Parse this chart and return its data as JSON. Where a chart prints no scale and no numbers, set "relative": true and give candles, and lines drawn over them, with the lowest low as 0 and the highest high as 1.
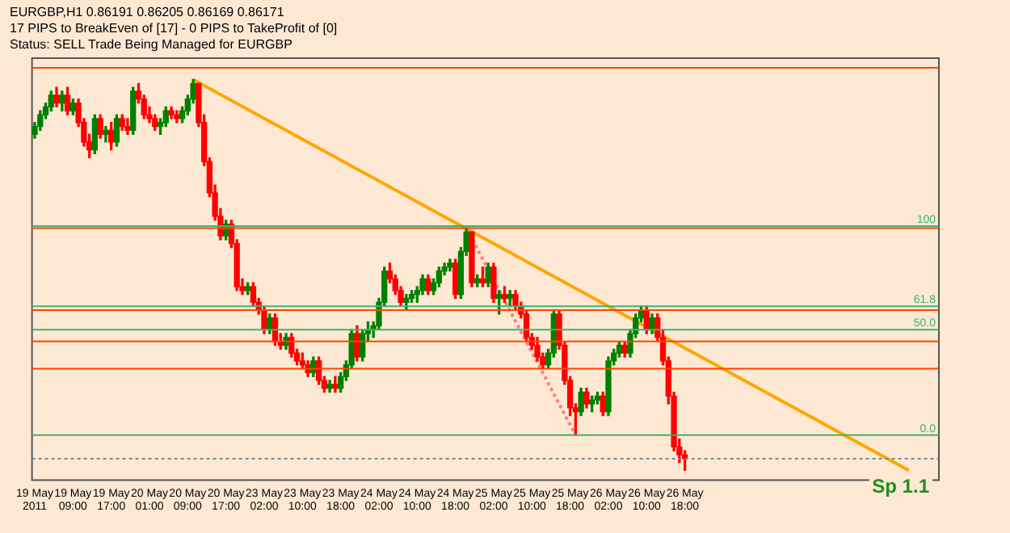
{
  "chart_data": {
    "type": "candlestick",
    "relative": true,
    "title": "EURGBP,H1  0.86191 0.86205 0.86169 0.86171",
    "annotations": [
      "17 PIPS to BreakEven of [17] - 0 PIPS to TakeProfit of [0]",
      "Status: SELL Trade Being Managed for EURGBP",
      {
        "text": "100",
        "y": 0.625
      },
      {
        "text": "61.8",
        "y": 0.42
      },
      {
        "text": "50.0",
        "y": 0.36
      },
      {
        "text": "0.0",
        "y": 0.09
      },
      "Sp 1.1"
    ],
    "categories": [
      "19 May 2011",
      null,
      null,
      null,
      null,
      null,
      null,
      "19 May 09:00",
      null,
      null,
      null,
      null,
      null,
      null,
      "19 May 17:00",
      null,
      null,
      null,
      null,
      null,
      null,
      "20 May 01:00",
      null,
      null,
      null,
      null,
      null,
      null,
      "20 May 09:00",
      null,
      null,
      null,
      null,
      null,
      null,
      "20 May 17:00",
      null,
      null,
      null,
      null,
      null,
      null,
      "23 May 02:00",
      null,
      null,
      null,
      null,
      null,
      null,
      "23 May 10:00",
      null,
      null,
      null,
      null,
      null,
      null,
      "23 May 18:00",
      null,
      null,
      null,
      null,
      null,
      null,
      "24 May 02:00",
      null,
      null,
      null,
      null,
      null,
      null,
      "24 May 10:00",
      null,
      null,
      null,
      null,
      null,
      null,
      "24 May 18:00",
      null,
      null,
      null,
      null,
      null,
      null,
      "25 May 02:00",
      null,
      null,
      null,
      null,
      null,
      null,
      "25 May 10:00",
      null,
      null,
      null,
      null,
      null,
      null,
      "25 May 18:00",
      null,
      null,
      null,
      null,
      null,
      null,
      "26 May 02:00",
      null,
      null,
      null,
      null,
      null,
      null,
      "26 May 10:00",
      null,
      null,
      null,
      null,
      null,
      null,
      "26 May 18:00",
      null,
      null,
      null,
      null,
      null,
      null,
      null,
      null,
      null,
      null,
      null,
      null,
      null,
      null,
      null,
      null,
      null,
      null,
      null,
      null,
      null,
      null,
      null,
      null,
      null,
      null,
      null,
      null,
      null,
      null,
      null,
      null,
      null,
      null,
      null,
      null,
      null,
      null,
      null,
      null,
      null,
      null,
      null,
      null,
      null,
      null
    ],
    "ohlc": [
      [
        0.86,
        0.89,
        0.85,
        0.88
      ],
      [
        0.88,
        0.92,
        0.87,
        0.91
      ],
      [
        0.91,
        0.94,
        0.9,
        0.93
      ],
      [
        0.93,
        0.97,
        0.92,
        0.96
      ],
      [
        0.96,
        0.98,
        0.93,
        0.94
      ],
      [
        0.94,
        0.97,
        0.92,
        0.96
      ],
      [
        0.96,
        0.98,
        0.91,
        0.92
      ],
      [
        0.92,
        0.95,
        0.91,
        0.94
      ],
      [
        0.94,
        0.95,
        0.88,
        0.89
      ],
      [
        0.89,
        0.9,
        0.83,
        0.84
      ],
      [
        0.84,
        0.86,
        0.8,
        0.82
      ],
      [
        0.82,
        0.91,
        0.81,
        0.9
      ],
      [
        0.9,
        0.91,
        0.85,
        0.86
      ],
      [
        0.86,
        0.88,
        0.84,
        0.87
      ],
      [
        0.87,
        0.89,
        0.82,
        0.84
      ],
      [
        0.84,
        0.91,
        0.83,
        0.9
      ],
      [
        0.9,
        0.91,
        0.87,
        0.88
      ],
      [
        0.88,
        0.9,
        0.86,
        0.87
      ],
      [
        0.87,
        0.98,
        0.86,
        0.97
      ],
      [
        0.97,
        0.99,
        0.94,
        0.95
      ],
      [
        0.95,
        0.96,
        0.9,
        0.91
      ],
      [
        0.91,
        0.93,
        0.89,
        0.9
      ],
      [
        0.9,
        0.91,
        0.87,
        0.88
      ],
      [
        0.88,
        0.9,
        0.86,
        0.89
      ],
      [
        0.89,
        0.93,
        0.88,
        0.92
      ],
      [
        0.92,
        0.93,
        0.9,
        0.91
      ],
      [
        0.91,
        0.92,
        0.89,
        0.9
      ],
      [
        0.9,
        0.93,
        0.89,
        0.92
      ],
      [
        0.92,
        0.96,
        0.91,
        0.95
      ],
      [
        0.95,
        1.0,
        0.94,
        0.99
      ],
      [
        0.99,
        0.99,
        0.88,
        0.89
      ],
      [
        0.89,
        0.91,
        0.78,
        0.79
      ],
      [
        0.79,
        0.8,
        0.7,
        0.71
      ],
      [
        0.71,
        0.73,
        0.64,
        0.65
      ],
      [
        0.65,
        0.67,
        0.59,
        0.6
      ],
      [
        0.6,
        0.64,
        0.59,
        0.63
      ],
      [
        0.63,
        0.64,
        0.57,
        0.58
      ],
      [
        0.58,
        0.59,
        0.46,
        0.47
      ],
      [
        0.47,
        0.49,
        0.45,
        0.46
      ],
      [
        0.46,
        0.48,
        0.45,
        0.47
      ],
      [
        0.47,
        0.48,
        0.42,
        0.43
      ],
      [
        0.43,
        0.44,
        0.4,
        0.41
      ],
      [
        0.41,
        0.42,
        0.35,
        0.36
      ],
      [
        0.36,
        0.4,
        0.35,
        0.39
      ],
      [
        0.39,
        0.4,
        0.32,
        0.33
      ],
      [
        0.33,
        0.35,
        0.31,
        0.32
      ],
      [
        0.32,
        0.35,
        0.31,
        0.34
      ],
      [
        0.34,
        0.35,
        0.29,
        0.3
      ],
      [
        0.3,
        0.31,
        0.27,
        0.28
      ],
      [
        0.28,
        0.3,
        0.26,
        0.27
      ],
      [
        0.27,
        0.28,
        0.24,
        0.25
      ],
      [
        0.25,
        0.29,
        0.24,
        0.28
      ],
      [
        0.28,
        0.29,
        0.22,
        0.23
      ],
      [
        0.23,
        0.24,
        0.2,
        0.21
      ],
      [
        0.21,
        0.23,
        0.2,
        0.22
      ],
      [
        0.22,
        0.24,
        0.2,
        0.21
      ],
      [
        0.21,
        0.25,
        0.2,
        0.24
      ],
      [
        0.24,
        0.28,
        0.23,
        0.27
      ],
      [
        0.27,
        0.36,
        0.26,
        0.35
      ],
      [
        0.35,
        0.37,
        0.28,
        0.29
      ],
      [
        0.29,
        0.36,
        0.28,
        0.35
      ],
      [
        0.35,
        0.38,
        0.33,
        0.36
      ],
      [
        0.36,
        0.38,
        0.34,
        0.37
      ],
      [
        0.37,
        0.44,
        0.36,
        0.43
      ],
      [
        0.43,
        0.52,
        0.42,
        0.51
      ],
      [
        0.51,
        0.53,
        0.48,
        0.49
      ],
      [
        0.49,
        0.5,
        0.45,
        0.46
      ],
      [
        0.46,
        0.47,
        0.42,
        0.43
      ],
      [
        0.43,
        0.45,
        0.41,
        0.44
      ],
      [
        0.44,
        0.46,
        0.43,
        0.45
      ],
      [
        0.45,
        0.47,
        0.43,
        0.46
      ],
      [
        0.46,
        0.5,
        0.45,
        0.49
      ],
      [
        0.49,
        0.5,
        0.45,
        0.46
      ],
      [
        0.46,
        0.49,
        0.45,
        0.48
      ],
      [
        0.48,
        0.52,
        0.47,
        0.51
      ],
      [
        0.51,
        0.53,
        0.5,
        0.52
      ],
      [
        0.52,
        0.54,
        0.51,
        0.53
      ],
      [
        0.53,
        0.54,
        0.44,
        0.45
      ],
      [
        0.45,
        0.57,
        0.44,
        0.56
      ],
      [
        0.56,
        0.62,
        0.55,
        0.61
      ],
      [
        0.61,
        0.61,
        0.47,
        0.48
      ],
      [
        0.48,
        0.5,
        0.47,
        0.49
      ],
      [
        0.49,
        0.52,
        0.47,
        0.48
      ],
      [
        0.48,
        0.53,
        0.47,
        0.52
      ],
      [
        0.52,
        0.53,
        0.43,
        0.44
      ],
      [
        0.44,
        0.46,
        0.4,
        0.45
      ],
      [
        0.45,
        0.47,
        0.43,
        0.44
      ],
      [
        0.44,
        0.46,
        0.42,
        0.45
      ],
      [
        0.45,
        0.46,
        0.41,
        0.42
      ],
      [
        0.42,
        0.43,
        0.39,
        0.4
      ],
      [
        0.4,
        0.41,
        0.33,
        0.34
      ],
      [
        0.34,
        0.35,
        0.31,
        0.32
      ],
      [
        0.32,
        0.34,
        0.28,
        0.29
      ],
      [
        0.29,
        0.3,
        0.26,
        0.27
      ],
      [
        0.27,
        0.31,
        0.26,
        0.3
      ],
      [
        0.3,
        0.41,
        0.29,
        0.4
      ],
      [
        0.4,
        0.41,
        0.31,
        0.32
      ],
      [
        0.32,
        0.33,
        0.22,
        0.23
      ],
      [
        0.23,
        0.24,
        0.14,
        0.16
      ],
      [
        0.16,
        0.17,
        0.09,
        0.15
      ],
      [
        0.15,
        0.21,
        0.14,
        0.2
      ],
      [
        0.2,
        0.21,
        0.16,
        0.17
      ],
      [
        0.17,
        0.19,
        0.15,
        0.18
      ],
      [
        0.18,
        0.2,
        0.17,
        0.19
      ],
      [
        0.19,
        0.2,
        0.14,
        0.15
      ],
      [
        0.15,
        0.29,
        0.14,
        0.28
      ],
      [
        0.28,
        0.31,
        0.27,
        0.3
      ],
      [
        0.3,
        0.33,
        0.29,
        0.32
      ],
      [
        0.32,
        0.33,
        0.29,
        0.3
      ],
      [
        0.3,
        0.36,
        0.29,
        0.35
      ],
      [
        0.35,
        0.4,
        0.34,
        0.39
      ],
      [
        0.39,
        0.42,
        0.38,
        0.41
      ],
      [
        0.41,
        0.42,
        0.35,
        0.36
      ],
      [
        0.36,
        0.4,
        0.35,
        0.39
      ],
      [
        0.39,
        0.4,
        0.33,
        0.34
      ],
      [
        0.34,
        0.36,
        0.27,
        0.28
      ],
      [
        0.28,
        0.29,
        0.17,
        0.19
      ],
      [
        0.19,
        0.2,
        0.05,
        0.06
      ],
      [
        0.06,
        0.08,
        0.02,
        0.04
      ],
      [
        0.04,
        0.05,
        0.0,
        0.03
      ],
      null,
      null,
      null,
      null,
      null,
      null,
      null,
      null,
      null,
      null,
      null,
      null,
      null,
      null,
      null,
      null,
      null,
      null,
      null,
      null,
      null,
      null,
      null,
      null,
      null,
      null,
      null,
      null,
      null,
      null,
      null,
      null,
      null,
      null,
      null,
      null,
      null,
      null,
      null,
      null,
      null,
      null,
      null,
      null,
      null,
      null
    ],
    "colors": [
      "#008000",
      "#008000",
      "#008000",
      "#008000",
      "#ff0000",
      "#008000",
      "#ff0000",
      "#008000",
      "#ff0000",
      "#ff0000",
      "#ff0000",
      "#008000",
      "#ff0000",
      "#008000",
      "#ff0000",
      "#008000",
      "#ff0000",
      "#ff0000",
      "#008000",
      "#ff0000",
      "#ff0000",
      "#ff0000",
      "#ff0000",
      "#008000",
      "#008000",
      "#ff0000",
      "#ff0000",
      "#008000",
      "#008000",
      "#008000",
      "#ff0000",
      "#ff0000",
      "#ff0000",
      "#ff0000",
      "#ff0000",
      "#008000",
      "#ff0000",
      "#ff0000",
      "#ff0000",
      "#008000",
      "#ff0000",
      "#ff0000",
      "#ff0000",
      "#008000",
      "#ff0000",
      "#ff0000",
      "#008000",
      "#ff0000",
      "#ff0000",
      "#ff0000",
      "#ff0000",
      "#008000",
      "#ff0000",
      "#ff0000",
      "#008000",
      "#ff0000",
      "#008000",
      "#008000",
      "#008000",
      "#ff0000",
      "#008000",
      "#008000",
      "#008000",
      "#008000",
      "#008000",
      "#ff0000",
      "#ff0000",
      "#ff0000",
      "#008000",
      "#008000",
      "#008000",
      "#008000",
      "#ff0000",
      "#008000",
      "#008000",
      "#008000",
      "#008000",
      "#ff0000",
      "#008000",
      "#008000",
      "#ff0000",
      "#008000",
      "#ff0000",
      "#008000",
      "#ff0000",
      "#008000",
      "#ff0000",
      "#008000",
      "#ff0000",
      "#ff0000",
      "#ff0000",
      "#ff0000",
      "#ff0000",
      "#ff0000",
      "#008000",
      "#008000",
      "#ff0000",
      "#ff0000",
      "#ff0000",
      "#ff0000",
      "#008000",
      "#ff0000",
      "#008000",
      "#008000",
      "#ff0000",
      "#008000",
      "#008000",
      "#008000",
      "#ff0000",
      "#008000",
      "#008000",
      "#008000",
      "#ff0000",
      "#008000",
      "#ff0000",
      "#ff0000",
      "#ff0000",
      "#ff0000",
      "#ff0000",
      "#ff0000",
      null,
      null,
      null,
      null,
      null,
      null,
      null,
      null,
      null,
      null,
      null,
      null,
      null,
      null,
      null,
      null,
      null,
      null,
      null,
      null,
      null,
      null,
      null,
      null,
      null,
      null,
      null,
      null,
      null,
      null,
      null,
      null,
      null,
      null,
      null,
      null,
      null,
      null,
      null,
      null,
      null,
      null,
      null,
      null,
      null,
      null
    ],
    "series": [
      {
        "type": "line",
        "color": "#ffa500",
        "line_style": "solid",
        "values": [
          null,
          null,
          null,
          null,
          null,
          null,
          null,
          null,
          null,
          null,
          null,
          null,
          null,
          null,
          null,
          null,
          null,
          null,
          null,
          null,
          null,
          null,
          null,
          null,
          null,
          null,
          null,
          null,
          null,
          1.0,
          null,
          null,
          null,
          null,
          null,
          null,
          null,
          null,
          null,
          null,
          null,
          null,
          null,
          null,
          null,
          null,
          null,
          null,
          null,
          null,
          null,
          null,
          null,
          null,
          null,
          null,
          null,
          null,
          null,
          null,
          null,
          null,
          null,
          null,
          null,
          null,
          null,
          null,
          null,
          null,
          null,
          null,
          null,
          null,
          null,
          null,
          null,
          null,
          null,
          null,
          null,
          null,
          null,
          null,
          null,
          null,
          null,
          null,
          null,
          null,
          null,
          null,
          null,
          null,
          null,
          null,
          null,
          null,
          null,
          null,
          null,
          null,
          null,
          null,
          null,
          null,
          null,
          null,
          null,
          null,
          null,
          null,
          null,
          null,
          null,
          null,
          null,
          null,
          null,
          null,
          null,
          null,
          null,
          null,
          null,
          null,
          null,
          null,
          null,
          null,
          null,
          null,
          null,
          null,
          null,
          null,
          null,
          null,
          null,
          null,
          null,
          null,
          null,
          null,
          null,
          null,
          null,
          null,
          null,
          null,
          null,
          null,
          null,
          null,
          null,
          null,
          null,
          null,
          null,
          null,
          0.0,
          null,
          null,
          null,
          null,
          null
        ]
      },
      {
        "type": "line",
        "color": "#ff8080",
        "line_style": "dotted",
        "values": [
          null,
          null,
          null,
          null,
          null,
          null,
          null,
          null,
          null,
          null,
          null,
          null,
          null,
          null,
          null,
          null,
          null,
          null,
          null,
          null,
          null,
          null,
          null,
          null,
          null,
          null,
          null,
          null,
          null,
          null,
          null,
          null,
          null,
          null,
          null,
          null,
          null,
          null,
          null,
          null,
          null,
          null,
          null,
          null,
          null,
          null,
          null,
          null,
          null,
          null,
          null,
          null,
          null,
          null,
          null,
          null,
          null,
          null,
          null,
          null,
          null,
          null,
          null,
          null,
          null,
          null,
          null,
          null,
          null,
          null,
          null,
          null,
          null,
          null,
          null,
          null,
          null,
          null,
          null,
          0.62,
          null,
          null,
          null,
          null,
          null,
          null,
          null,
          null,
          null,
          null,
          null,
          null,
          null,
          null,
          null,
          null,
          null,
          null,
          null,
          0.09,
          null,
          null,
          null,
          null,
          null,
          null,
          null,
          null,
          null,
          null,
          null,
          null,
          null,
          null,
          null,
          null,
          null,
          null,
          null,
          null,
          null,
          null,
          null,
          null,
          null,
          null,
          null,
          null,
          null,
          null,
          null,
          null,
          null,
          null,
          null,
          null,
          null,
          null,
          null,
          null,
          null,
          null,
          null,
          null,
          null,
          null,
          null,
          null,
          null,
          null,
          null,
          null,
          null,
          null,
          null,
          null,
          null,
          null,
          null,
          null,
          null,
          null,
          null,
          null,
          null,
          null
        ]
      }
    ],
    "ref_lines": [
      {
        "axis": "y",
        "value": 1.03,
        "color": "#ff4500"
      },
      {
        "axis": "y",
        "value": 0.625,
        "color": "#3cb371"
      },
      {
        "axis": "y",
        "value": 0.62,
        "color": "#ff4500"
      },
      {
        "axis": "y",
        "value": 0.42,
        "color": "#3cb371"
      },
      {
        "axis": "y",
        "value": 0.41,
        "color": "#ff4500"
      },
      {
        "axis": "y",
        "value": 0.36,
        "color": "#3cb371"
      },
      {
        "axis": "y",
        "value": 0.33,
        "color": "#ff4500"
      },
      {
        "axis": "y",
        "value": 0.26,
        "color": "#ff4500"
      },
      {
        "axis": "y",
        "value": 0.09,
        "color": "#3cb371"
      },
      {
        "axis": "y",
        "value": 0.03,
        "color": "#778899",
        "line_style": "dotted"
      }
    ],
    "grid": false,
    "legend": false
  }
}
